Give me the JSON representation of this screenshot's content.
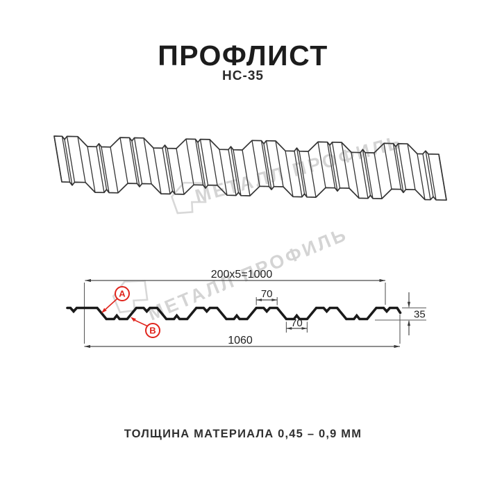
{
  "page": {
    "title": "ПРОФЛИСТ",
    "subtitle": "НС-35",
    "footer": "ТОЛЩИНА МАТЕРИАЛА 0,45 – 0,9 ММ"
  },
  "watermark": {
    "text": "МЕТАЛЛ ПРОФИЛЬ"
  },
  "section": {
    "dim_coverage": "200x5=1000",
    "dim_overall": "1060",
    "dim_height": "35",
    "dim_rib_top": "70",
    "dim_rib_bottom": "70",
    "label_a": "A",
    "label_b": "B"
  },
  "colors": {
    "accent_red": "#e0241c",
    "drawing_line": "#1a1a1a",
    "sheet_line": "#333333",
    "watermark_gray": "#d4d4d4"
  }
}
